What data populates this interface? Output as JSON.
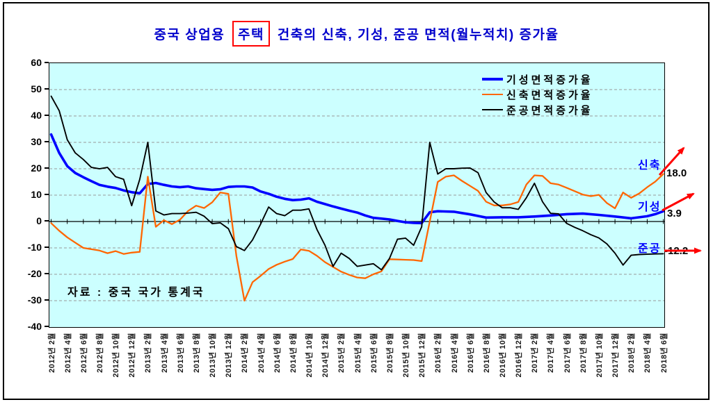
{
  "title": {
    "text_before": "중국 상업용",
    "boxed_word": "주택",
    "text_after": "건축의 신축, 기성, 준공 면적(월누적치) 증가율",
    "color": "#0000CC",
    "box_color": "#FF0000"
  },
  "source_note": "자료 : 중국 국가 통계국",
  "annotations": {
    "sinchuk": {
      "label": "신축",
      "value": "18.0"
    },
    "giseong": {
      "label": "기성",
      "value": "3.9"
    },
    "jungong": {
      "label": "준공",
      "value": "-12.2"
    },
    "arrow_color": "#FF0000"
  },
  "chart_data": {
    "type": "line",
    "title": "중국 상업용 주택 건축의 신축, 기성, 준공 면적(월누적치) 증가율",
    "plot_bg": "#CCFFFF",
    "grid_color": "#999999",
    "legend_position": "top-right-inside",
    "y_axis": {
      "min": -40,
      "max": 60,
      "step": 10,
      "tick_labels": [
        "60",
        "50",
        "40",
        "30",
        "20",
        "10",
        "0",
        "-10",
        "-20",
        "-30",
        "-40"
      ]
    },
    "x_axis": {
      "months_span": 77,
      "tick_labels": [
        "2012년 2월",
        "2012년 4월",
        "2012년 6월",
        "2012년 8월",
        "2012년 10월",
        "2012년 12월",
        "2013년 2월",
        "2013년 4월",
        "2013년 6월",
        "2013년 8월",
        "2013년 10월",
        "2013년 12월",
        "2014년 2월",
        "2014년 4월",
        "2014년 6월",
        "2014년 8월",
        "2014년 10월",
        "2014년 12월",
        "2015년 2월",
        "2015년 4월",
        "2015년 6월",
        "2015년 8월",
        "2015년 10월",
        "2015년 12월",
        "2016년 2월",
        "2016년 4월",
        "2016년 6월",
        "2016년 8월",
        "2016년 10월",
        "2016년 12월",
        "2017년 2월",
        "2017년 4월",
        "2017년 6월",
        "2017년 8월",
        "2017년 10월",
        "2017년 12월",
        "2018년 2월",
        "2018년 4월",
        "2018년 6월"
      ]
    },
    "series": [
      {
        "name": "기성면적증가율",
        "color": "#0000FF",
        "width": 3.6,
        "end_label": "기성",
        "end_value": 3.9,
        "points": [
          [
            0,
            33
          ],
          [
            1,
            26
          ],
          [
            2,
            21
          ],
          [
            3,
            18.4
          ],
          [
            4,
            16.8
          ],
          [
            5,
            15.3
          ],
          [
            6,
            13.9
          ],
          [
            7,
            13.2
          ],
          [
            8,
            12.7
          ],
          [
            9,
            11.8
          ],
          [
            10,
            11.1
          ],
          [
            11,
            10.7
          ],
          [
            12,
            14.2
          ],
          [
            13,
            14.6
          ],
          [
            14,
            13.9
          ],
          [
            15,
            13.3
          ],
          [
            16,
            13.0
          ],
          [
            17,
            13.3
          ],
          [
            18,
            12.6
          ],
          [
            19,
            12.3
          ],
          [
            20,
            12.0
          ],
          [
            21,
            12.2
          ],
          [
            22,
            13.1
          ],
          [
            23,
            13.3
          ],
          [
            24,
            13.3
          ],
          [
            25,
            12.9
          ],
          [
            26,
            11.4
          ],
          [
            27,
            10.5
          ],
          [
            28,
            9.4
          ],
          [
            29,
            8.6
          ],
          [
            30,
            8.1
          ],
          [
            31,
            8.3
          ],
          [
            32,
            8.8
          ],
          [
            33,
            7.5
          ],
          [
            34,
            6.6
          ],
          [
            35,
            5.7
          ],
          [
            36,
            4.9
          ],
          [
            37,
            4.1
          ],
          [
            38,
            3.4
          ],
          [
            39,
            2.3
          ],
          [
            40,
            1.4
          ],
          [
            41,
            1.1
          ],
          [
            42,
            0.8
          ],
          [
            43,
            0.2
          ],
          [
            44,
            -0.3
          ],
          [
            45,
            -0.5
          ],
          [
            46,
            -0.6
          ],
          [
            47,
            3.5
          ],
          [
            48,
            3.9
          ],
          [
            50,
            3.7
          ],
          [
            51,
            3.2
          ],
          [
            52,
            2.7
          ],
          [
            53,
            2.1
          ],
          [
            54,
            1.5
          ],
          [
            56,
            1.6
          ],
          [
            58,
            1.6
          ],
          [
            60,
            1.9
          ],
          [
            62,
            2.3
          ],
          [
            64,
            2.8
          ],
          [
            66,
            3.0
          ],
          [
            68,
            2.5
          ],
          [
            70,
            1.9
          ],
          [
            72,
            1.2
          ],
          [
            74,
            2.0
          ],
          [
            75,
            2.8
          ],
          [
            76,
            3.9
          ]
        ]
      },
      {
        "name": "신축면적증가율",
        "color": "#FF6600",
        "width": 2.3,
        "end_label": "신축",
        "end_value": 18.0,
        "points": [
          [
            0,
            -0.6
          ],
          [
            1,
            -3.5
          ],
          [
            2,
            -6
          ],
          [
            3,
            -8
          ],
          [
            4,
            -10
          ],
          [
            5,
            -10.5
          ],
          [
            6,
            -11
          ],
          [
            7,
            -12
          ],
          [
            8,
            -11.2
          ],
          [
            9,
            -12.3
          ],
          [
            10,
            -11.8
          ],
          [
            11,
            -11.5
          ],
          [
            12,
            17
          ],
          [
            13,
            -2
          ],
          [
            14,
            0.5
          ],
          [
            15,
            -1
          ],
          [
            16,
            0.7
          ],
          [
            17,
            4
          ],
          [
            18,
            6
          ],
          [
            19,
            5.1
          ],
          [
            20,
            7.3
          ],
          [
            21,
            11
          ],
          [
            22,
            10.5
          ],
          [
            23,
            -13
          ],
          [
            24,
            -30
          ],
          [
            25,
            -23
          ],
          [
            26,
            -20.6
          ],
          [
            27,
            -18
          ],
          [
            28,
            -16.4
          ],
          [
            29,
            -15.2
          ],
          [
            30,
            -14.2
          ],
          [
            31,
            -10.6
          ],
          [
            32,
            -11.1
          ],
          [
            33,
            -13
          ],
          [
            34,
            -15.4
          ],
          [
            35,
            -17.2
          ],
          [
            36,
            -19
          ],
          [
            37,
            -20.2
          ],
          [
            38,
            -21.2
          ],
          [
            39,
            -21.5
          ],
          [
            40,
            -20
          ],
          [
            41,
            -18.9
          ],
          [
            42,
            -14.3
          ],
          [
            43,
            -14.4
          ],
          [
            44,
            -14.5
          ],
          [
            45,
            -14.6
          ],
          [
            46,
            -15
          ],
          [
            47,
            0
          ],
          [
            48,
            15
          ],
          [
            49,
            17
          ],
          [
            50,
            17.5
          ],
          [
            51,
            15.4
          ],
          [
            52,
            13.5
          ],
          [
            53,
            11.6
          ],
          [
            54,
            7.5
          ],
          [
            55,
            6.1
          ],
          [
            56,
            6.1
          ],
          [
            57,
            6.5
          ],
          [
            58,
            7.4
          ],
          [
            59,
            14
          ],
          [
            60,
            17.5
          ],
          [
            61,
            17.3
          ],
          [
            62,
            14.5
          ],
          [
            63,
            14.0
          ],
          [
            64,
            12.8
          ],
          [
            65,
            11.5
          ],
          [
            66,
            10.2
          ],
          [
            67,
            9.6
          ],
          [
            68,
            10.1
          ],
          [
            69,
            7
          ],
          [
            70,
            5
          ],
          [
            71,
            11
          ],
          [
            72,
            9
          ],
          [
            73,
            10.6
          ],
          [
            74,
            13
          ],
          [
            75,
            15.1
          ],
          [
            76,
            18.0
          ]
        ]
      },
      {
        "name": "준공면적증가율",
        "color": "#000000",
        "width": 1.9,
        "end_label": "준공",
        "end_value": -12.2,
        "points": [
          [
            0,
            47.5
          ],
          [
            1,
            42
          ],
          [
            2,
            31
          ],
          [
            3,
            26
          ],
          [
            4,
            23.5
          ],
          [
            5,
            20.5
          ],
          [
            6,
            20
          ],
          [
            7,
            20.5
          ],
          [
            8,
            17
          ],
          [
            9,
            16
          ],
          [
            10,
            6
          ],
          [
            11,
            16
          ],
          [
            12,
            30
          ],
          [
            13,
            4
          ],
          [
            14,
            2.5
          ],
          [
            15,
            3
          ],
          [
            16,
            3
          ],
          [
            17,
            3.2
          ],
          [
            18,
            3.5
          ],
          [
            19,
            2
          ],
          [
            20,
            -0.8
          ],
          [
            21,
            -0.5
          ],
          [
            22,
            -2.7
          ],
          [
            23,
            -9.5
          ],
          [
            24,
            -11
          ],
          [
            25,
            -7
          ],
          [
            26,
            -1
          ],
          [
            27,
            5.5
          ],
          [
            28,
            3
          ],
          [
            29,
            2.2
          ],
          [
            30,
            4.3
          ],
          [
            31,
            4.3
          ],
          [
            32,
            4.8
          ],
          [
            33,
            -3
          ],
          [
            34,
            -9
          ],
          [
            35,
            -17
          ],
          [
            36,
            -12
          ],
          [
            37,
            -14
          ],
          [
            38,
            -17
          ],
          [
            39,
            -16.5
          ],
          [
            40,
            -16
          ],
          [
            41,
            -18.3
          ],
          [
            42,
            -14
          ],
          [
            43,
            -6.7
          ],
          [
            44,
            -6.3
          ],
          [
            45,
            -9
          ],
          [
            46,
            -2
          ],
          [
            47,
            30
          ],
          [
            48,
            18
          ],
          [
            49,
            20
          ],
          [
            50,
            20
          ],
          [
            51,
            20.2
          ],
          [
            52,
            20.3
          ],
          [
            53,
            18.5
          ],
          [
            54,
            11
          ],
          [
            55,
            7.4
          ],
          [
            56,
            5.2
          ],
          [
            57,
            5.2
          ],
          [
            58,
            4.6
          ],
          [
            59,
            9
          ],
          [
            60,
            14.5
          ],
          [
            61,
            7.5
          ],
          [
            62,
            3.1
          ],
          [
            63,
            2.9
          ],
          [
            64,
            -0.7
          ],
          [
            65,
            -2.2
          ],
          [
            66,
            -3.5
          ],
          [
            67,
            -5
          ],
          [
            68,
            -6.2
          ],
          [
            69,
            -8.5
          ],
          [
            70,
            -12
          ],
          [
            71,
            -16.5
          ],
          [
            72,
            -12.8
          ],
          [
            73,
            -12.5
          ],
          [
            74,
            -12.4
          ],
          [
            75,
            -12.3
          ],
          [
            76,
            -12.2
          ]
        ]
      }
    ]
  }
}
